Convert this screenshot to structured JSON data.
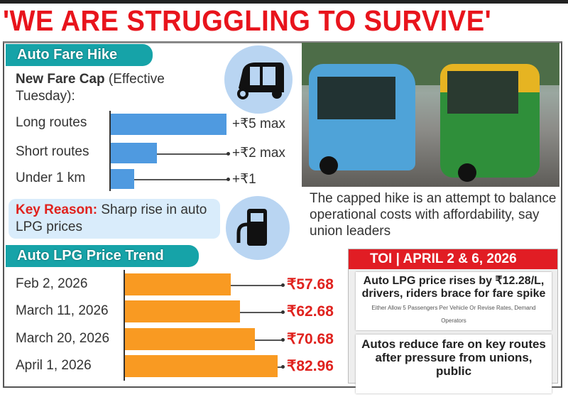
{
  "headline": "'WE ARE STRUGGLING TO SURVIVE'",
  "fare_section": {
    "tab": "Auto Fare Hike",
    "subtitle_bold": "New Fare Cap",
    "subtitle_rest": " (Effective Tuesday):",
    "icon": "auto-rickshaw-icon"
  },
  "key_reason": {
    "label": "Key Reason:",
    "text": " Sharp rise in auto LPG prices",
    "icon": "fuel-pump-icon"
  },
  "lpg_section": {
    "tab": "Auto LPG Price Trend"
  },
  "photo_caption": "The capped hike is an attempt to balance operational costs with affordability, say union leaders",
  "clippings": {
    "header": "TOI | APRIL 2 & 6, 2026",
    "headline1": "Auto LPG price rises by ₹12.28/L, drivers, riders brace for fare spike",
    "sub1": "Either Allow 5 Passengers Per Vehicle Or Revise Rates, Demand Operators",
    "headline2": "Autos reduce fare on key routes after pressure from unions, public"
  },
  "colors": {
    "title": "#e8141c",
    "tab": "#16a3a8",
    "fare_bar": "#4f9ae0",
    "lpg_bar": "#f99a22",
    "price_text": "#e0221e"
  },
  "chart_data": [
    {
      "type": "bar",
      "orientation": "horizontal",
      "title": "New Fare Cap (Effective Tuesday):",
      "categories": [
        "Long routes",
        "Short routes",
        "Under 1 km"
      ],
      "values": [
        5,
        2,
        1
      ],
      "labels": [
        "+₹5 max",
        "+₹2 max",
        "+₹1"
      ]
    },
    {
      "type": "bar",
      "orientation": "horizontal",
      "title": "Auto LPG Price Trend",
      "categories": [
        "Feb 2, 2026",
        "March 11, 2026",
        "March 20, 2026",
        "April 1, 2026"
      ],
      "values": [
        57.68,
        62.68,
        70.68,
        82.96
      ],
      "labels": [
        "₹57.68",
        "₹62.68",
        "₹70.68",
        "₹82.96"
      ]
    }
  ]
}
